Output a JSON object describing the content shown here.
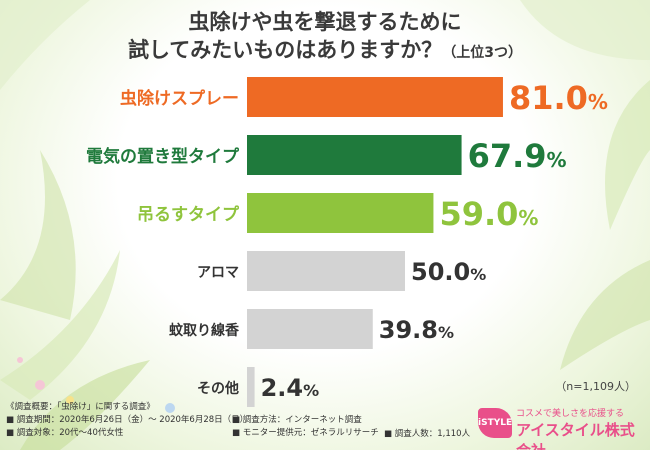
{
  "title": {
    "line1": "虫除けや虫を撃退するために",
    "line2": "試してみたいものはありますか？",
    "line2_small": "（上位3つ）"
  },
  "chart_data": {
    "type": "bar",
    "orientation": "horizontal",
    "categories": [
      "虫除けスプレー",
      "電気の置き型タイプ",
      "吊るすタイプ",
      "アロマ",
      "蚊取り線香",
      "その他"
    ],
    "values": [
      81.0,
      67.9,
      59.0,
      50.0,
      39.8,
      2.4
    ],
    "value_labels": [
      "81.0",
      "67.9",
      "59.0",
      "50.0",
      "39.8",
      "2.4"
    ],
    "unit": "%",
    "bar_colors": [
      "#ee6a24",
      "#1f7a3c",
      "#8fc43d",
      "#d3d3d3",
      "#d3d3d3",
      "#d3d3d3"
    ],
    "label_colors": [
      "#ee6a24",
      "#1f7a3c",
      "#8fc43d",
      "#333333",
      "#333333",
      "#333333"
    ],
    "xlim": [
      0,
      100
    ]
  },
  "sample_size": "（n=1,109人）",
  "notes": {
    "heading": "《調査概要：「虫除け」に関する調査》",
    "period": "■ 調査期間：2020年6月26日（金）～ 2020年6月28日（日）",
    "target": "■ 調査対象：20代～40代女性",
    "method": "■ 調査方法：インターネット調査",
    "provider": "■ モニター提供元：ゼネラルリサーチ",
    "count": "■ 調査人数：1,110人"
  },
  "logo": {
    "badge": "iSTYLE",
    "tagline": "コスメで美しさを応援する",
    "company": "アイスタイル株式会社"
  }
}
